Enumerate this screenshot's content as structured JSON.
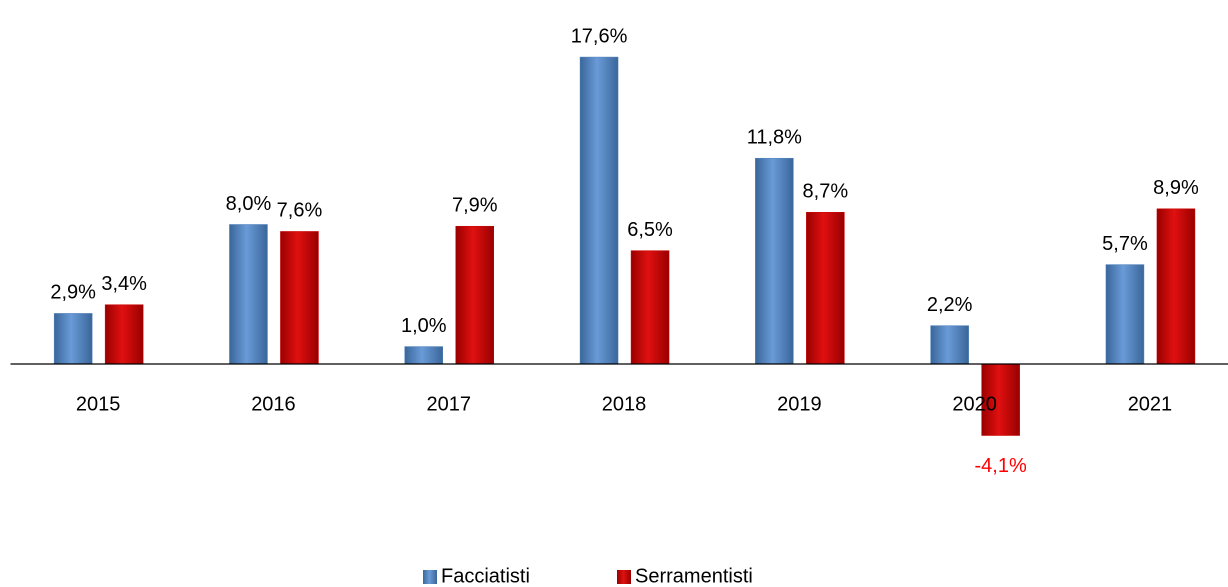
{
  "chart_data": {
    "type": "bar",
    "categories": [
      "2015",
      "2016",
      "2017",
      "2018",
      "2019",
      "2020",
      "2021"
    ],
    "series": [
      {
        "name": "Facciatisti",
        "color": "#4f81bd",
        "values": [
          2.9,
          8.0,
          1.0,
          17.6,
          11.8,
          2.2,
          5.7
        ],
        "value_labels": [
          "2,9%",
          "8,0%",
          "1,0%",
          "17,6%",
          "11,8%",
          "2,2%",
          "5,7%"
        ]
      },
      {
        "name": "Serramentisti",
        "color": "#cc0000",
        "values": [
          3.4,
          7.6,
          7.9,
          6.5,
          8.7,
          -4.1,
          8.9
        ],
        "value_labels": [
          "3,4%",
          "7,6%",
          "7,9%",
          "6,5%",
          "8,7%",
          "-4,1%",
          "8,9%"
        ]
      }
    ],
    "negative_label_color": "#ff0000",
    "legend": "bottom"
  }
}
